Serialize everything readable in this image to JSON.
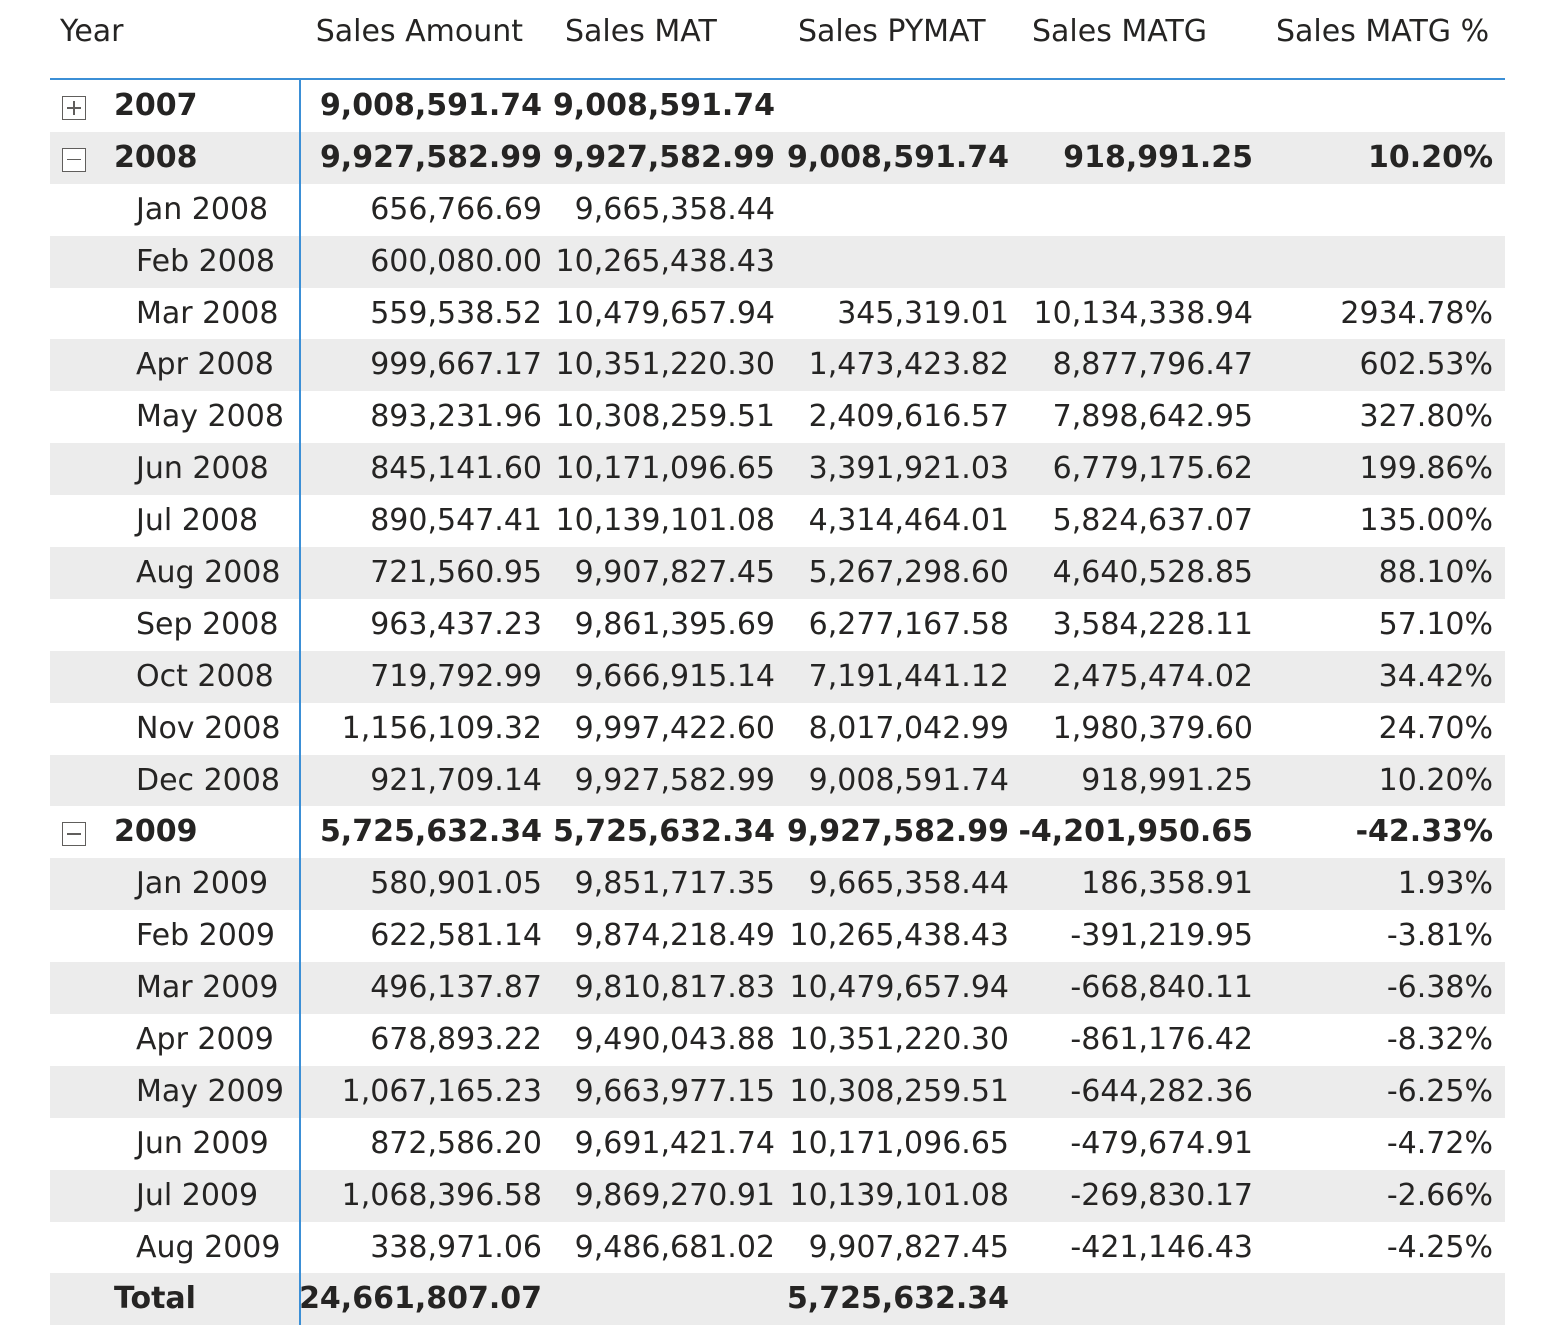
{
  "columns": [
    "Year",
    "Sales Amount",
    "Sales MAT",
    "Sales PYMAT",
    "Sales MATG",
    "Sales MATG %"
  ],
  "rows": [
    {
      "level": "year",
      "toggle": "expand",
      "label": "2007",
      "values": [
        "9,008,591.74",
        "9,008,591.74",
        "",
        "",
        ""
      ]
    },
    {
      "level": "year",
      "toggle": "collapse",
      "label": "2008",
      "values": [
        "9,927,582.99",
        "9,927,582.99",
        "9,008,591.74",
        "918,991.25",
        "10.20%"
      ]
    },
    {
      "level": "month",
      "label": "Jan 2008",
      "values": [
        "656,766.69",
        "9,665,358.44",
        "",
        "",
        ""
      ]
    },
    {
      "level": "month",
      "label": "Feb 2008",
      "values": [
        "600,080.00",
        "10,265,438.43",
        "",
        "",
        ""
      ]
    },
    {
      "level": "month",
      "label": "Mar 2008",
      "values": [
        "559,538.52",
        "10,479,657.94",
        "345,319.01",
        "10,134,338.94",
        "2934.78%"
      ]
    },
    {
      "level": "month",
      "label": "Apr 2008",
      "values": [
        "999,667.17",
        "10,351,220.30",
        "1,473,423.82",
        "8,877,796.47",
        "602.53%"
      ]
    },
    {
      "level": "month",
      "label": "May 2008",
      "values": [
        "893,231.96",
        "10,308,259.51",
        "2,409,616.57",
        "7,898,642.95",
        "327.80%"
      ]
    },
    {
      "level": "month",
      "label": "Jun 2008",
      "values": [
        "845,141.60",
        "10,171,096.65",
        "3,391,921.03",
        "6,779,175.62",
        "199.86%"
      ]
    },
    {
      "level": "month",
      "label": "Jul 2008",
      "values": [
        "890,547.41",
        "10,139,101.08",
        "4,314,464.01",
        "5,824,637.07",
        "135.00%"
      ]
    },
    {
      "level": "month",
      "label": "Aug 2008",
      "values": [
        "721,560.95",
        "9,907,827.45",
        "5,267,298.60",
        "4,640,528.85",
        "88.10%"
      ]
    },
    {
      "level": "month",
      "label": "Sep 2008",
      "values": [
        "963,437.23",
        "9,861,395.69",
        "6,277,167.58",
        "3,584,228.11",
        "57.10%"
      ]
    },
    {
      "level": "month",
      "label": "Oct 2008",
      "values": [
        "719,792.99",
        "9,666,915.14",
        "7,191,441.12",
        "2,475,474.02",
        "34.42%"
      ]
    },
    {
      "level": "month",
      "label": "Nov 2008",
      "values": [
        "1,156,109.32",
        "9,997,422.60",
        "8,017,042.99",
        "1,980,379.60",
        "24.70%"
      ]
    },
    {
      "level": "month",
      "label": "Dec 2008",
      "values": [
        "921,709.14",
        "9,927,582.99",
        "9,008,591.74",
        "918,991.25",
        "10.20%"
      ]
    },
    {
      "level": "year",
      "toggle": "collapse",
      "label": "2009",
      "values": [
        "5,725,632.34",
        "5,725,632.34",
        "9,927,582.99",
        "-4,201,950.65",
        "-42.33%"
      ]
    },
    {
      "level": "month",
      "label": "Jan 2009",
      "values": [
        "580,901.05",
        "9,851,717.35",
        "9,665,358.44",
        "186,358.91",
        "1.93%"
      ]
    },
    {
      "level": "month",
      "label": "Feb 2009",
      "values": [
        "622,581.14",
        "9,874,218.49",
        "10,265,438.43",
        "-391,219.95",
        "-3.81%"
      ]
    },
    {
      "level": "month",
      "label": "Mar 2009",
      "values": [
        "496,137.87",
        "9,810,817.83",
        "10,479,657.94",
        "-668,840.11",
        "-6.38%"
      ]
    },
    {
      "level": "month",
      "label": "Apr 2009",
      "values": [
        "678,893.22",
        "9,490,043.88",
        "10,351,220.30",
        "-861,176.42",
        "-8.32%"
      ]
    },
    {
      "level": "month",
      "label": "May 2009",
      "values": [
        "1,067,165.23",
        "9,663,977.15",
        "10,308,259.51",
        "-644,282.36",
        "-6.25%"
      ]
    },
    {
      "level": "month",
      "label": "Jun 2009",
      "values": [
        "872,586.20",
        "9,691,421.74",
        "10,171,096.65",
        "-479,674.91",
        "-4.72%"
      ]
    },
    {
      "level": "month",
      "label": "Jul 2009",
      "values": [
        "1,068,396.58",
        "9,869,270.91",
        "10,139,101.08",
        "-269,830.17",
        "-2.66%"
      ]
    },
    {
      "level": "month",
      "label": "Aug 2009",
      "values": [
        "338,971.06",
        "9,486,681.02",
        "9,907,827.45",
        "-421,146.43",
        "-4.25%"
      ]
    },
    {
      "level": "total",
      "label": "Total",
      "values": [
        "24,661,807.07",
        "",
        "5,725,632.34",
        "",
        ""
      ]
    }
  ],
  "colors": {
    "band": "#ececec",
    "accent": "#3b8fd6",
    "text": "#252423"
  }
}
